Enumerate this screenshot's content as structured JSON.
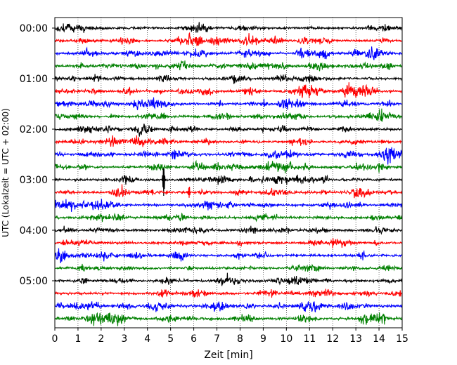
{
  "chart_data": {
    "type": "line",
    "subtype": "helicorder",
    "title": "",
    "xlabel": "Zeit  [min]",
    "ylabel": "UTC (Lokalzeit = UTC + 02:00)",
    "xlim": [
      0,
      15
    ],
    "x_ticks": [
      "0",
      "1",
      "2",
      "3",
      "4",
      "5",
      "6",
      "7",
      "8",
      "9",
      "10",
      "11",
      "12",
      "13",
      "14",
      "15"
    ],
    "y_tick_labels": [
      "00:00",
      "01:00",
      "02:00",
      "03:00",
      "04:00",
      "05:00"
    ],
    "trace_interval_minutes": 15,
    "trace_start_times": [
      "00:00",
      "00:15",
      "00:30",
      "00:45",
      "01:00",
      "01:15",
      "01:30",
      "01:45",
      "02:00",
      "02:15",
      "02:30",
      "02:45",
      "03:00",
      "03:15",
      "03:30",
      "03:45",
      "04:00",
      "04:15",
      "04:30",
      "04:45",
      "05:00",
      "05:15",
      "05:30",
      "05:45"
    ],
    "trace_colors": [
      "#000000",
      "#ff0000",
      "#0000ff",
      "#008000"
    ],
    "vertical_grid": "dotted",
    "notable_events": [
      {
        "trace_start": "03:00",
        "minute": 4.7,
        "relative_amplitude": 9.0
      },
      {
        "trace_start": "03:15",
        "minute": 5.8,
        "relative_amplitude": 3.0
      },
      {
        "trace_start": "04:15",
        "minute": 12.0,
        "relative_amplitude": 3.0
      }
    ]
  }
}
